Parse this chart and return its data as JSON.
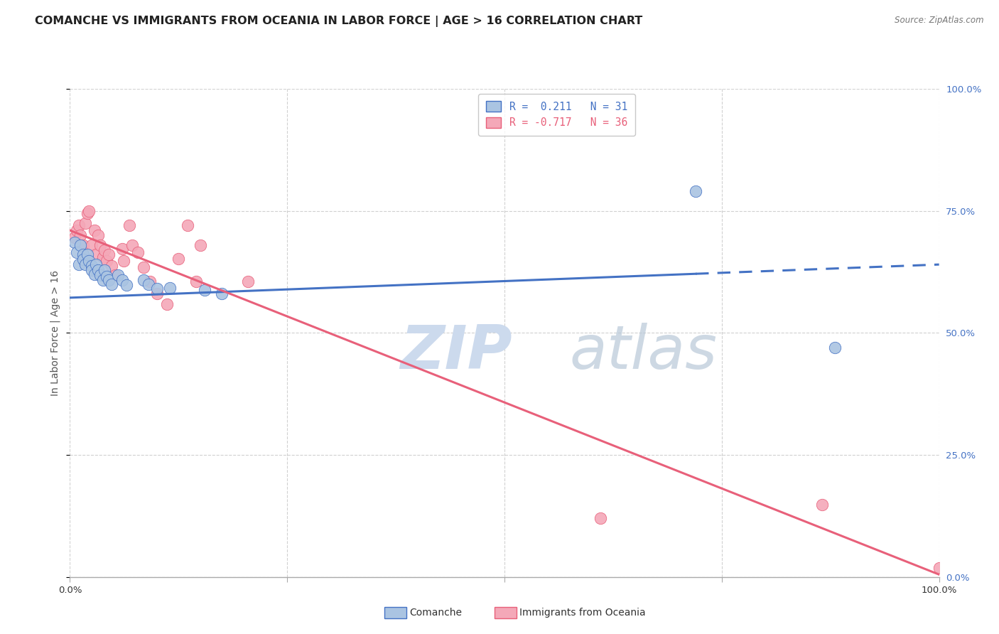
{
  "title": "COMANCHE VS IMMIGRANTS FROM OCEANIA IN LABOR FORCE | AGE > 16 CORRELATION CHART",
  "source": "Source: ZipAtlas.com",
  "ylabel": "In Labor Force | Age > 16",
  "xlim": [
    0.0,
    1.0
  ],
  "ylim": [
    0.0,
    1.0
  ],
  "legend1_label": "R =  0.211   N = 31",
  "legend2_label": "R = -0.717   N = 36",
  "legend_label_bottom1": "Comanche",
  "legend_label_bottom2": "Immigrants from Oceania",
  "comanche_color": "#aac4e2",
  "oceania_color": "#f4a8b8",
  "comanche_line_color": "#4472c4",
  "oceania_line_color": "#e8607a",
  "grid_color": "#cccccc",
  "background_color": "#ffffff",
  "watermark_zip": "ZIP",
  "watermark_atlas": "atlas",
  "watermark_color": "#ccdaed",
  "comanche_points": [
    [
      0.005,
      0.685
    ],
    [
      0.008,
      0.665
    ],
    [
      0.01,
      0.64
    ],
    [
      0.012,
      0.68
    ],
    [
      0.015,
      0.66
    ],
    [
      0.015,
      0.65
    ],
    [
      0.018,
      0.64
    ],
    [
      0.02,
      0.66
    ],
    [
      0.022,
      0.648
    ],
    [
      0.025,
      0.638
    ],
    [
      0.025,
      0.628
    ],
    [
      0.028,
      0.62
    ],
    [
      0.03,
      0.64
    ],
    [
      0.032,
      0.628
    ],
    [
      0.035,
      0.618
    ],
    [
      0.038,
      0.608
    ],
    [
      0.04,
      0.628
    ],
    [
      0.042,
      0.615
    ],
    [
      0.045,
      0.608
    ],
    [
      0.048,
      0.6
    ],
    [
      0.055,
      0.618
    ],
    [
      0.06,
      0.608
    ],
    [
      0.065,
      0.598
    ],
    [
      0.085,
      0.608
    ],
    [
      0.09,
      0.6
    ],
    [
      0.1,
      0.59
    ],
    [
      0.115,
      0.592
    ],
    [
      0.155,
      0.588
    ],
    [
      0.175,
      0.58
    ],
    [
      0.72,
      0.79
    ],
    [
      0.88,
      0.47
    ]
  ],
  "oceania_points": [
    [
      0.005,
      0.695
    ],
    [
      0.008,
      0.71
    ],
    [
      0.01,
      0.72
    ],
    [
      0.012,
      0.7
    ],
    [
      0.015,
      0.68
    ],
    [
      0.018,
      0.725
    ],
    [
      0.02,
      0.745
    ],
    [
      0.022,
      0.75
    ],
    [
      0.025,
      0.68
    ],
    [
      0.028,
      0.71
    ],
    [
      0.03,
      0.66
    ],
    [
      0.032,
      0.7
    ],
    [
      0.035,
      0.68
    ],
    [
      0.038,
      0.655
    ],
    [
      0.04,
      0.67
    ],
    [
      0.042,
      0.648
    ],
    [
      0.045,
      0.66
    ],
    [
      0.048,
      0.638
    ],
    [
      0.052,
      0.618
    ],
    [
      0.06,
      0.672
    ],
    [
      0.062,
      0.648
    ],
    [
      0.068,
      0.72
    ],
    [
      0.072,
      0.68
    ],
    [
      0.078,
      0.665
    ],
    [
      0.085,
      0.635
    ],
    [
      0.092,
      0.605
    ],
    [
      0.1,
      0.58
    ],
    [
      0.112,
      0.558
    ],
    [
      0.125,
      0.652
    ],
    [
      0.145,
      0.605
    ],
    [
      0.205,
      0.605
    ],
    [
      0.135,
      0.72
    ],
    [
      0.15,
      0.68
    ],
    [
      0.61,
      0.12
    ],
    [
      0.865,
      0.148
    ],
    [
      1.0,
      0.018
    ]
  ],
  "comanche_line": {
    "x0": 0.0,
    "y0": 0.572,
    "x1": 1.0,
    "y1": 0.64
  },
  "oceania_line": {
    "x0": 0.0,
    "y0": 0.71,
    "x1": 1.0,
    "y1": 0.005
  },
  "comanche_line_dashed_start": 0.72,
  "title_fontsize": 11.5,
  "axis_label_fontsize": 10,
  "tick_fontsize": 9.5,
  "legend_fontsize": 10.5
}
